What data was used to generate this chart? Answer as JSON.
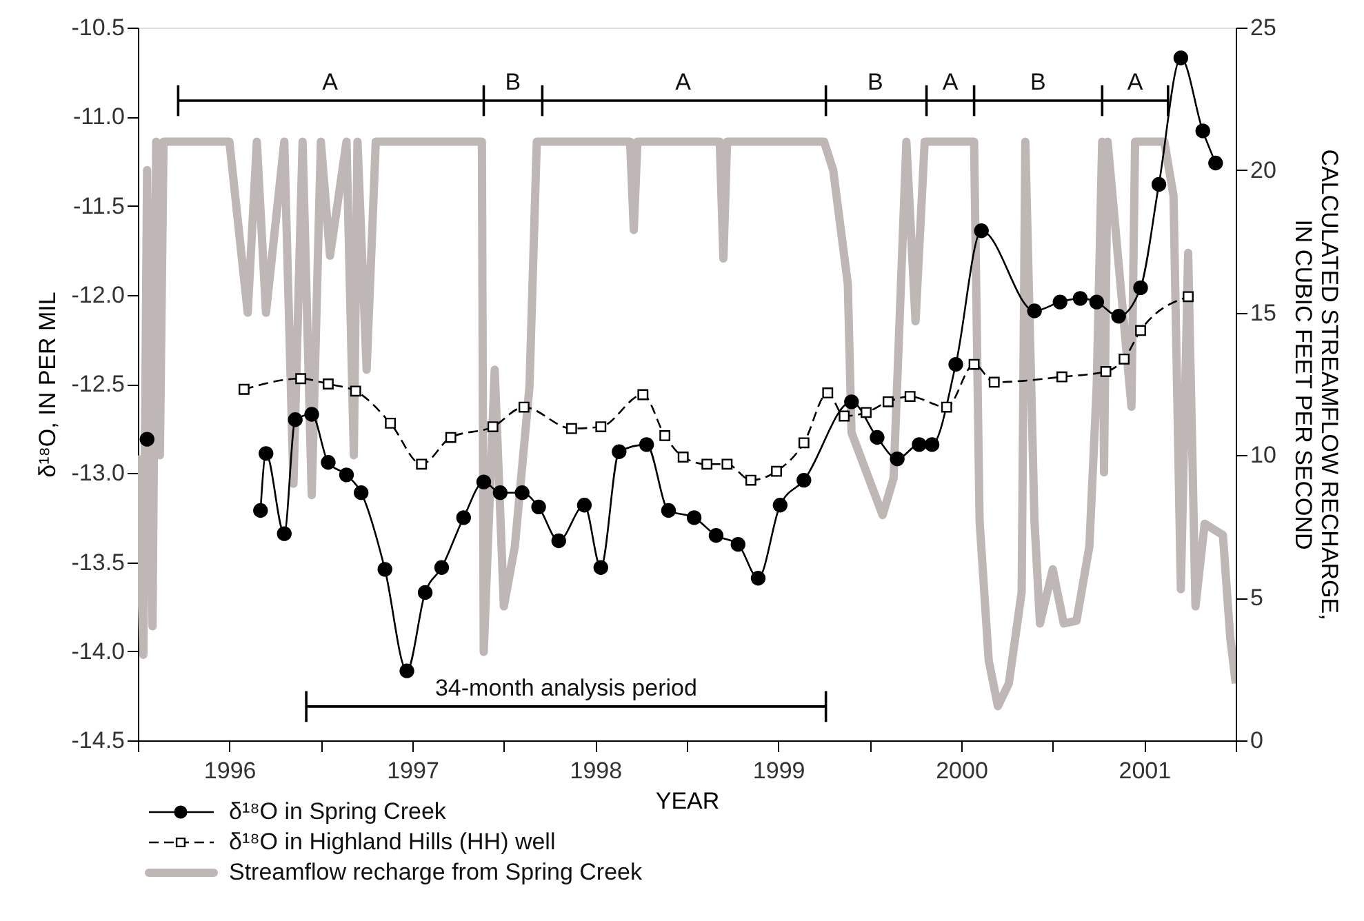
{
  "chart_data": {
    "type": "line",
    "xlabel": "YEAR",
    "ylabel": "δ¹⁸O, IN PER MIL",
    "y2label": "CALCULATED STREAMFLOW RECHARGE,\nIN CUBIC FEET PER SECOND",
    "xlim": [
      1996,
      2002
    ],
    "xticks": [
      {
        "value": 1996,
        "label": null
      },
      {
        "value": 1996.5,
        "label": "1996"
      },
      {
        "value": 1997,
        "label": null
      },
      {
        "value": 1997.5,
        "label": "1997"
      },
      {
        "value": 1998,
        "label": null
      },
      {
        "value": 1998.5,
        "label": "1998"
      },
      {
        "value": 1999,
        "label": null
      },
      {
        "value": 1999.5,
        "label": "1999"
      },
      {
        "value": 2000,
        "label": null
      },
      {
        "value": 2000.5,
        "label": "2000"
      },
      {
        "value": 2001,
        "label": null
      },
      {
        "value": 2001.5,
        "label": "2001"
      },
      {
        "value": 2002,
        "label": null
      }
    ],
    "ylim": [
      -14.5,
      -10.5
    ],
    "yticks": [
      {
        "value": -14.5,
        "label": "-14.5"
      },
      {
        "value": -14.0,
        "label": "-14.0"
      },
      {
        "value": -13.5,
        "label": "-13.5"
      },
      {
        "value": -13.0,
        "label": "-13.0"
      },
      {
        "value": -12.5,
        "label": "-12.5"
      },
      {
        "value": -12.0,
        "label": "-12.0"
      },
      {
        "value": -11.5,
        "label": "-11.5"
      },
      {
        "value": -11.0,
        "label": "-11.0"
      },
      {
        "value": -10.5,
        "label": "-10.5"
      }
    ],
    "y2lim": [
      0,
      25
    ],
    "y2ticks": [
      0,
      5,
      10,
      15,
      20,
      25
    ],
    "grid": false,
    "legend": "bottom left",
    "series": [
      {
        "name": "Streamflow recharge from Spring Creek",
        "color": "#bfb6b6",
        "axis": "y2",
        "marker": "none",
        "line_style": "solid",
        "x": [
          1996.0,
          1996.03,
          1996.05,
          1996.08,
          1996.1,
          1996.12,
          1996.14,
          1996.5,
          1996.55,
          1996.6,
          1996.65,
          1996.7,
          1996.8,
          1996.85,
          1996.9,
          1996.95,
          1997.0,
          1997.05,
          1997.14,
          1997.18,
          1997.2,
          1997.25,
          1997.3,
          1997.88,
          1997.89,
          1997.95,
          1998.0,
          1998.06,
          1998.14,
          1998.18,
          1998.69,
          1998.71,
          1998.73,
          1999.18,
          1999.2,
          1999.22,
          1999.75,
          1999.8,
          1999.88,
          1999.9,
          2000.07,
          2000.13,
          2000.2,
          2000.25,
          2000.3,
          2000.57,
          2000.6,
          2000.65,
          2000.7,
          2000.76,
          2000.83,
          2000.85,
          2000.9,
          2000.93,
          2001.0,
          2001.06,
          2001.13,
          2001.2,
          2001.24,
          2001.27,
          2001.28,
          2001.3,
          2001.43,
          2001.45,
          2001.61,
          2001.66,
          2001.7,
          2001.74,
          2001.78,
          2001.83,
          2001.93,
          2001.97,
          2002.0
        ],
        "values": [
          10,
          3,
          20,
          4,
          21,
          10,
          21,
          21,
          18,
          15,
          21,
          15,
          21,
          9,
          21,
          8.6,
          21,
          17,
          21,
          10,
          21,
          13,
          21,
          21,
          3.1,
          13,
          4.7,
          6.8,
          12.4,
          21,
          21,
          17.9,
          21,
          21,
          16.9,
          21,
          21,
          20,
          16,
          10.8,
          7.9,
          9.2,
          21,
          14.7,
          21,
          21,
          7.7,
          2.8,
          1.2,
          2,
          5.2,
          21,
          7.7,
          4.1,
          6,
          4.1,
          4.2,
          6.8,
          12.4,
          21,
          9.4,
          21,
          11.7,
          21,
          21,
          19.1,
          5.3,
          17.1,
          4.7,
          7.6,
          7.2,
          3.6,
          2
        ]
      },
      {
        "name": "δ¹⁸O in Spring Creek",
        "color": "#000000",
        "marker": "circle",
        "line_style": "solid",
        "x": [
          1996.05,
          1996.4,
          1996.67,
          1996.7,
          1996.8,
          1996.86,
          1996.95,
          1997.04,
          1997.14,
          1997.22,
          1997.35,
          1997.47,
          1997.57,
          1997.66,
          1997.78,
          1997.89,
          1997.98,
          1998.1,
          1998.19,
          1998.3,
          1998.44,
          1998.53,
          1998.63,
          1998.78,
          1998.9,
          1999.04,
          1999.16,
          1999.28,
          1999.39,
          1999.51,
          1999.64,
          1999.9,
          2000.04,
          2000.15,
          2000.27,
          2000.34,
          2000.47,
          2000.61,
          2000.9,
          2001.04,
          2001.15,
          2001.24,
          2001.36,
          2001.48,
          2001.58,
          2001.7,
          2001.82,
          2001.89
        ],
        "values": [
          -12.81,
          null,
          -13.21,
          -12.89,
          -13.34,
          -12.7,
          -12.67,
          -12.94,
          -13.01,
          -13.11,
          -13.54,
          -14.11,
          -13.67,
          -13.53,
          -13.25,
          -13.05,
          -13.11,
          -13.11,
          -13.19,
          -13.38,
          -13.18,
          -13.53,
          -12.88,
          -12.84,
          -13.21,
          -13.25,
          -13.35,
          -13.4,
          -13.59,
          -13.18,
          -13.04,
          -12.6,
          -12.8,
          -12.92,
          -12.84,
          -12.84,
          -12.39,
          -11.64,
          -12.09,
          -12.04,
          -12.02,
          -12.04,
          -12.12,
          -11.96,
          -11.38,
          -10.67,
          -11.08,
          -11.26
        ]
      },
      {
        "name": "δ¹⁸O in Highland Hills (HH) well",
        "color": "#000000",
        "marker": "square",
        "line_style": "dashed",
        "x": [
          1996.58,
          1996.89,
          1997.04,
          1997.19,
          1997.38,
          1997.55,
          1997.71,
          1997.94,
          1998.11,
          1998.37,
          1998.53,
          1998.76,
          1998.88,
          1998.98,
          1999.11,
          1999.22,
          1999.35,
          1999.49,
          1999.64,
          1999.77,
          1999.86,
          1999.98,
          2000.1,
          2000.22,
          2000.42,
          2000.57,
          2000.68,
          2001.05,
          2001.29,
          2001.39,
          2001.48,
          2001.74
        ],
        "values": [
          -12.53,
          -12.47,
          -12.5,
          -12.54,
          -12.72,
          -12.95,
          -12.8,
          -12.74,
          -12.63,
          -12.75,
          -12.74,
          -12.56,
          -12.79,
          -12.91,
          -12.95,
          -12.95,
          -13.04,
          -12.99,
          -12.83,
          -12.55,
          -12.68,
          -12.66,
          -12.6,
          -12.57,
          -12.63,
          -12.39,
          -12.49,
          -12.46,
          -12.43,
          -12.36,
          -12.2,
          -12.01
        ]
      },
      {
        "type": "line",
        "color": "#000000",
        "marker": "none",
        "line_style": "solid",
        "x": [
          1996.22,
          1997.89,
          1998.21,
          1999.76,
          2000.31,
          2000.57,
          2001.27,
          2001.63
        ],
        "values": [
          -10.91,
          -10.91,
          -10.91,
          -10.91,
          -10.91,
          -10.91,
          -10.91,
          -10.91
        ]
      },
      {
        "type": "line",
        "color": "#000000",
        "marker": "none",
        "line_style": "solid",
        "x": [
          1996.92,
          1999.76
        ],
        "values": [
          -14.31,
          -14.31
        ]
      }
    ],
    "annotations": [
      {
        "text": "A",
        "x": 1997.05,
        "y": -10.91
      },
      {
        "text": "B",
        "x": 1998.05,
        "y": -10.91
      },
      {
        "text": "A",
        "x": 1998.98,
        "y": -10.91
      },
      {
        "text": "B",
        "x": 2000.03,
        "y": -10.91
      },
      {
        "text": "A",
        "x": 2000.44,
        "y": -10.91
      },
      {
        "text": "B",
        "x": 2000.92,
        "y": -10.91
      },
      {
        "text": "A",
        "x": 2001.45,
        "y": -10.91
      },
      {
        "text": "34-month analysis period",
        "x": 1998.34,
        "y": -14.31
      }
    ]
  }
}
